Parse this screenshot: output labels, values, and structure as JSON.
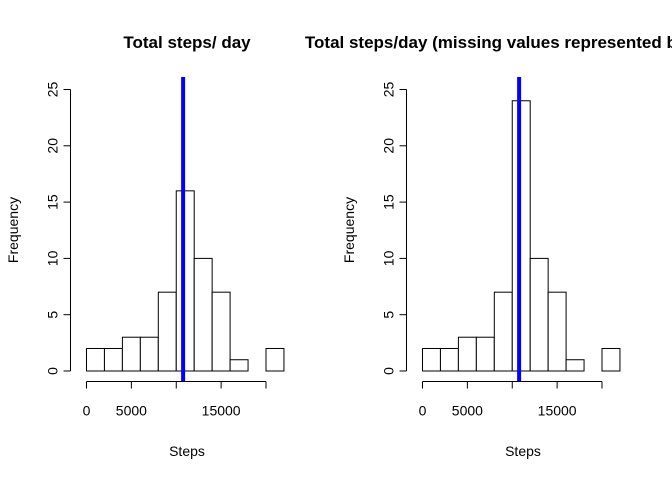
{
  "colors": {
    "background": "#ffffff",
    "bar_fill": "#ffffff",
    "bar_stroke": "#000000",
    "mean_line": "#0000ff"
  },
  "chart_data": [
    {
      "type": "bar",
      "subtype": "histogram",
      "title": "Total steps/ day",
      "xlabel": "Steps",
      "ylabel": "Frequency",
      "bin_width": 2000,
      "bin_starts": [
        0,
        2000,
        4000,
        6000,
        8000,
        10000,
        12000,
        14000,
        16000,
        18000,
        20000
      ],
      "values": [
        2,
        2,
        3,
        3,
        7,
        16,
        10,
        7,
        1,
        0,
        2
      ],
      "xticks": [
        0,
        5000,
        15000
      ],
      "xtick_labels": [
        "0",
        "5000",
        "15000"
      ],
      "xaxis_range": [
        0,
        20000
      ],
      "yticks": [
        0,
        5,
        10,
        15,
        20,
        25
      ],
      "ylim": [
        0,
        25
      ],
      "vline_x": 10766,
      "grid": false,
      "legend": false
    },
    {
      "type": "bar",
      "subtype": "histogram",
      "title": "Total steps/day (missing values represented by mean)",
      "xlabel": "Steps",
      "ylabel": "Frequency",
      "bin_width": 2000,
      "bin_starts": [
        0,
        2000,
        4000,
        6000,
        8000,
        10000,
        12000,
        14000,
        16000,
        18000,
        20000
      ],
      "values": [
        2,
        2,
        3,
        3,
        7,
        24,
        10,
        7,
        1,
        0,
        2
      ],
      "xticks": [
        0,
        5000,
        15000
      ],
      "xtick_labels": [
        "0",
        "5000",
        "15000"
      ],
      "xaxis_range": [
        0,
        20000
      ],
      "yticks": [
        0,
        5,
        10,
        15,
        20,
        25
      ],
      "ylim": [
        0,
        25
      ],
      "vline_x": 10766,
      "grid": false,
      "legend": false
    }
  ]
}
